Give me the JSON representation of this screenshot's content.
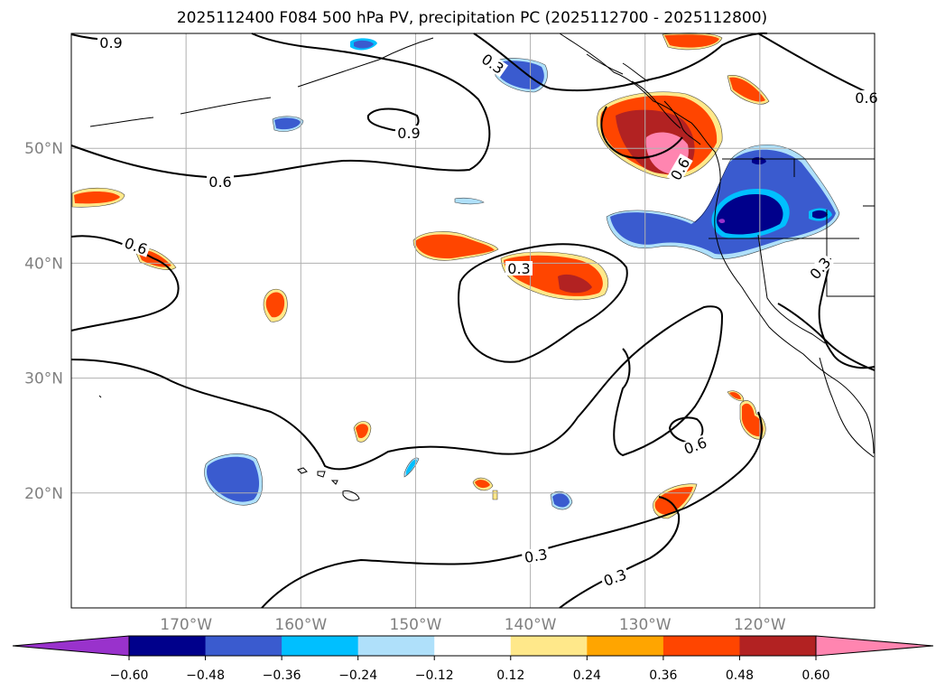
{
  "chart_data": {
    "type": "map-contour",
    "title": "2025112400 F084 500 hPa PV, precipitation PC (2025112700 - 2025112800)",
    "map_extent": {
      "lon": [
        -180,
        -110
      ],
      "lat": [
        10,
        60
      ]
    },
    "grid": true,
    "lon_ticks": [
      {
        "value": -170,
        "label": "170°W"
      },
      {
        "value": -160,
        "label": "160°W"
      },
      {
        "value": -150,
        "label": "150°W"
      },
      {
        "value": -140,
        "label": "140°W"
      },
      {
        "value": -130,
        "label": "130°W"
      },
      {
        "value": -120,
        "label": "120°W"
      }
    ],
    "lat_ticks": [
      {
        "value": 50,
        "label": "50°N"
      },
      {
        "value": 40,
        "label": "40°N"
      },
      {
        "value": 30,
        "label": "30°N"
      },
      {
        "value": 20,
        "label": "20°N"
      }
    ],
    "colorbar": {
      "levels": [
        -0.6,
        -0.48,
        -0.36,
        -0.24,
        -0.12,
        0.12,
        0.24,
        0.36,
        0.48,
        0.6
      ],
      "tick_labels": [
        "−0.60",
        "−0.48",
        "−0.36",
        "−0.24",
        "−0.12",
        "0.12",
        "0.24",
        "0.36",
        "0.48",
        "0.60"
      ],
      "colors": [
        "#9932cc",
        "#00008b",
        "#3a5bcf",
        "#00bfff",
        "#afe0fa",
        "#ffffff",
        "#ffe88a",
        "#ffa500",
        "#ff4500",
        "#b22222",
        "#ff85b0"
      ],
      "extend": "both"
    },
    "contour_labels": [
      "0.9",
      "0.9",
      "0.3",
      "0.6",
      "0.6",
      "0.3",
      "0.6",
      "0.6",
      "0.3",
      "0.6",
      "0.3",
      "0.3"
    ]
  }
}
